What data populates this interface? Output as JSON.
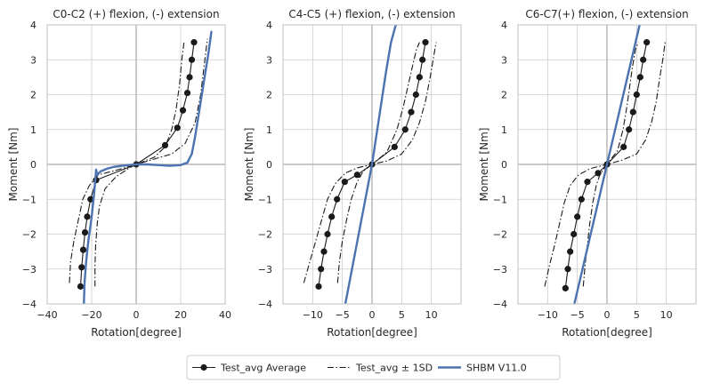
{
  "chart_data": [
    {
      "type": "line",
      "title": "C0-C2 (+) flexion, (-) extension",
      "xlabel": "Rotation[degree]",
      "ylabel": "Moment [Nm]",
      "xlim": [
        -40,
        40
      ],
      "ylim": [
        -4,
        4
      ],
      "xticks": [
        -40,
        -20,
        0,
        20,
        40
      ],
      "yticks": [
        -4,
        -3,
        -2,
        -1,
        0,
        1,
        2,
        3,
        4
      ],
      "grid": true,
      "series": [
        {
          "name": "Test_avg Average",
          "style": "solid-marker",
          "color": "#1a1a1a",
          "x": [
            -25,
            -24.5,
            -23.8,
            -23,
            -22,
            -20.5,
            -18,
            0,
            13,
            18.5,
            21,
            23,
            24,
            25,
            26
          ],
          "y": [
            -3.5,
            -2.95,
            -2.45,
            -1.95,
            -1.5,
            -1.0,
            -0.45,
            0.0,
            0.55,
            1.05,
            1.55,
            2.05,
            2.5,
            3.0,
            3.5
          ]
        },
        {
          "name": "Test_avg ± 1SD",
          "style": "dashdot",
          "color": "#1a1a1a",
          "x": [
            -30,
            -29.5,
            -28,
            -26,
            -24,
            -21,
            -17,
            -8,
            0,
            8,
            13,
            16,
            18,
            19.5,
            20.5,
            21.5
          ],
          "y": [
            -3.4,
            -2.8,
            -2.2,
            -1.6,
            -1.0,
            -0.6,
            -0.3,
            -0.15,
            0.0,
            0.2,
            0.5,
            1.0,
            1.6,
            2.3,
            3.0,
            3.5
          ]
        },
        {
          "name": "Test_avg ± 1SD",
          "style": "dashdot",
          "color": "#1a1a1a",
          "x": [
            -18.5,
            -18.5,
            -18.2,
            -17.5,
            -16.5,
            -14,
            -9,
            -3,
            0,
            8,
            16,
            22,
            26.5,
            29,
            30.5,
            32
          ],
          "y": [
            -3.5,
            -2.9,
            -2.3,
            -1.7,
            -1.2,
            -0.7,
            -0.35,
            -0.1,
            0.0,
            0.15,
            0.3,
            0.6,
            1.2,
            2.0,
            2.8,
            3.6
          ]
        },
        {
          "name": "SHBM V11.0",
          "style": "solid-thick",
          "color": "#4c72b0",
          "x": [
            -23.5,
            -23.2,
            -22.5,
            -21.5,
            -20,
            -19,
            -18.3,
            -18,
            -17.5,
            -16,
            -13,
            -10,
            -5,
            0,
            5,
            10,
            15,
            20,
            23,
            25,
            26.5,
            28,
            29.5,
            31,
            32.5,
            33.8
          ],
          "y": [
            -4.0,
            -3.4,
            -2.8,
            -2.2,
            -1.5,
            -0.9,
            -0.4,
            -0.15,
            -0.3,
            -0.2,
            -0.12,
            -0.07,
            -0.03,
            0.0,
            0.0,
            -0.02,
            -0.04,
            -0.02,
            0.05,
            0.3,
            0.8,
            1.4,
            2.0,
            2.6,
            3.2,
            3.8
          ]
        }
      ]
    },
    {
      "type": "line",
      "title": "C4-C5 (+) flexion, (-) extension",
      "xlabel": "Rotation[degree]",
      "ylabel": "Moment [Nm]",
      "xlim": [
        -15,
        15
      ],
      "ylim": [
        -4,
        4
      ],
      "xticks": [
        -10,
        -5,
        0,
        5,
        10
      ],
      "yticks": [
        -4,
        -3,
        -2,
        -1,
        0,
        1,
        2,
        3,
        4
      ],
      "grid": true,
      "series": [
        {
          "name": "Test_avg Average",
          "style": "solid-marker",
          "color": "#1a1a1a",
          "x": [
            -9,
            -8.6,
            -8.1,
            -7.5,
            -6.8,
            -5.9,
            -4.6,
            -2.5,
            0,
            3.8,
            5.6,
            6.6,
            7.4,
            8,
            8.5,
            9
          ],
          "y": [
            -3.5,
            -3.0,
            -2.5,
            -2.0,
            -1.5,
            -1.0,
            -0.5,
            -0.3,
            0.0,
            0.5,
            1.0,
            1.5,
            2.0,
            2.5,
            3.0,
            3.5
          ]
        },
        {
          "name": "Test_avg ± 1SD",
          "style": "dashdot",
          "color": "#1a1a1a",
          "x": [
            -11.5,
            -10.5,
            -9.5,
            -8.5,
            -7.5,
            -6.2,
            -4.5,
            -2.5,
            0,
            2.5,
            4.2,
            5.2,
            6,
            6.8,
            7.5,
            8
          ],
          "y": [
            -3.4,
            -2.8,
            -2.2,
            -1.6,
            -1.0,
            -0.55,
            -0.25,
            -0.1,
            0.0,
            0.35,
            1.0,
            1.6,
            2.2,
            2.8,
            3.3,
            3.5
          ]
        },
        {
          "name": "Test_avg ± 1SD",
          "style": "dashdot",
          "color": "#1a1a1a",
          "x": [
            -5.8,
            -5.5,
            -5,
            -4.3,
            -3.5,
            -2.5,
            -1.5,
            0,
            2.5,
            5,
            6.8,
            8,
            9,
            9.8,
            10.3,
            10.8
          ],
          "y": [
            -3.4,
            -2.8,
            -2.2,
            -1.6,
            -1.0,
            -0.5,
            -0.2,
            0.0,
            0.1,
            0.3,
            0.7,
            1.2,
            1.8,
            2.5,
            3.0,
            3.5
          ]
        },
        {
          "name": "SHBM V11.0",
          "style": "solid-thick",
          "color": "#4c72b0",
          "x": [
            -4.5,
            -3.6,
            -2.7,
            -1.8,
            -0.9,
            0,
            0.8,
            1.6,
            2.4,
            3.2,
            4.0
          ],
          "y": [
            -4.0,
            -3.2,
            -2.4,
            -1.6,
            -0.8,
            0.0,
            0.9,
            1.8,
            2.7,
            3.5,
            4.0
          ]
        }
      ]
    },
    {
      "type": "line",
      "title": "C6-C7(+) flexion, (-) extension",
      "xlabel": "Rotation[degree]",
      "ylabel": "Moment [Nm]",
      "xlim": [
        -15,
        15
      ],
      "ylim": [
        -4,
        4
      ],
      "xticks": [
        -10,
        -5,
        0,
        5,
        10
      ],
      "yticks": [
        -4,
        -3,
        -2,
        -1,
        0,
        1,
        2,
        3,
        4
      ],
      "grid": true,
      "series": [
        {
          "name": "Test_avg Average",
          "style": "solid-marker",
          "color": "#1a1a1a",
          "x": [
            -7,
            -6.6,
            -6.2,
            -5.6,
            -5,
            -4.3,
            -3.3,
            -1.5,
            0,
            2.8,
            3.7,
            4.4,
            5,
            5.6,
            6.1,
            6.7
          ],
          "y": [
            -3.55,
            -3.0,
            -2.5,
            -2.0,
            -1.5,
            -1.0,
            -0.5,
            -0.25,
            0.0,
            0.5,
            1.0,
            1.5,
            2.0,
            2.5,
            3.0,
            3.5
          ]
        },
        {
          "name": "Test_avg ± 1SD",
          "style": "dashdot",
          "color": "#1a1a1a",
          "x": [
            -10.5,
            -9.7,
            -8.8,
            -8,
            -7.2,
            -6.2,
            -4.8,
            -2.8,
            0,
            1.8,
            2.7,
            3.3,
            3.8,
            4.3,
            4.8,
            5.3
          ],
          "y": [
            -3.5,
            -2.9,
            -2.3,
            -1.7,
            -1.1,
            -0.6,
            -0.3,
            -0.12,
            0.0,
            0.4,
            1.0,
            1.6,
            2.2,
            2.8,
            3.3,
            3.5
          ]
        },
        {
          "name": "Test_avg ± 1SD",
          "style": "dashdot",
          "color": "#1a1a1a",
          "x": [
            -4,
            -3.7,
            -3.3,
            -2.9,
            -2.4,
            -1.8,
            -1.2,
            0,
            2.5,
            5,
            6.5,
            7.5,
            8.3,
            8.9,
            9.4,
            9.8
          ],
          "y": [
            -3.5,
            -2.9,
            -2.3,
            -1.7,
            -1.1,
            -0.6,
            -0.3,
            0.0,
            0.12,
            0.3,
            0.7,
            1.2,
            1.8,
            2.5,
            3.0,
            3.5
          ]
        },
        {
          "name": "SHBM V11.0",
          "style": "solid-thick",
          "color": "#4c72b0",
          "x": [
            -5.5,
            -4.4,
            -3.3,
            -2.2,
            -1.1,
            0,
            1.1,
            2.2,
            3.3,
            4.4,
            5.5
          ],
          "y": [
            -4.0,
            -3.2,
            -2.4,
            -1.6,
            -0.8,
            0.0,
            0.8,
            1.6,
            2.4,
            3.2,
            4.0
          ]
        }
      ]
    }
  ],
  "legend": {
    "placement": "bottom-center",
    "items": [
      {
        "label": "Test_avg Average",
        "style": "solid-marker"
      },
      {
        "label": "Test_avg ± 1SD",
        "style": "dashdot"
      },
      {
        "label": "SHBM V11.0",
        "style": "solid-thick"
      }
    ]
  },
  "colors": {
    "test": "#1a1a1a",
    "shbm": "#4c72b0",
    "grid": "#cccccc",
    "zero_line": "#a6a6a6",
    "axes": "#bfbfbf"
  }
}
